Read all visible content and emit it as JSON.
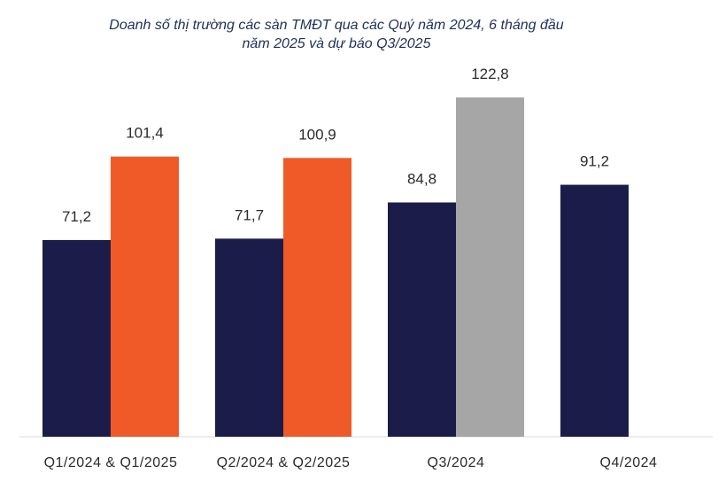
{
  "chart_data": {
    "type": "bar",
    "title_lines": [
      "Doanh số thị trường các sàn TMĐT qua các Quý năm 2024, 6 tháng đầu",
      "năm 2025 và dự báo Q3/2025"
    ],
    "categories": [
      "Q1/2024 & Q1/2025",
      "Q2/2024 & Q2/2025",
      "Q3/2024",
      "Q4/2024"
    ],
    "ylim": [
      0,
      125
    ],
    "grid": false,
    "legend": "none",
    "bars": [
      {
        "category_index": 0,
        "slot": 0,
        "value": 71.2,
        "label": "71,2",
        "color": "#1c1c4a"
      },
      {
        "category_index": 0,
        "slot": 1,
        "value": 101.4,
        "label": "101,4",
        "color": "#f05a28"
      },
      {
        "category_index": 1,
        "slot": 0,
        "value": 71.7,
        "label": "71,7",
        "color": "#1c1c4a"
      },
      {
        "category_index": 1,
        "slot": 1,
        "value": 100.9,
        "label": "100,9",
        "color": "#f05a28"
      },
      {
        "category_index": 2,
        "slot": 0,
        "value": 84.8,
        "label": "84,8",
        "color": "#1c1c4a"
      },
      {
        "category_index": 2,
        "slot": 1,
        "value": 122.8,
        "label": "122,8",
        "color": "#a6a6a6"
      },
      {
        "category_index": 3,
        "slot": 0,
        "value": 91.2,
        "label": "91,2",
        "color": "#1c1c4a"
      }
    ],
    "colors": {
      "navy": "#1c1c4a",
      "orange": "#f05a28",
      "gray": "#a6a6a6",
      "axis": "#d9d9d9"
    }
  }
}
